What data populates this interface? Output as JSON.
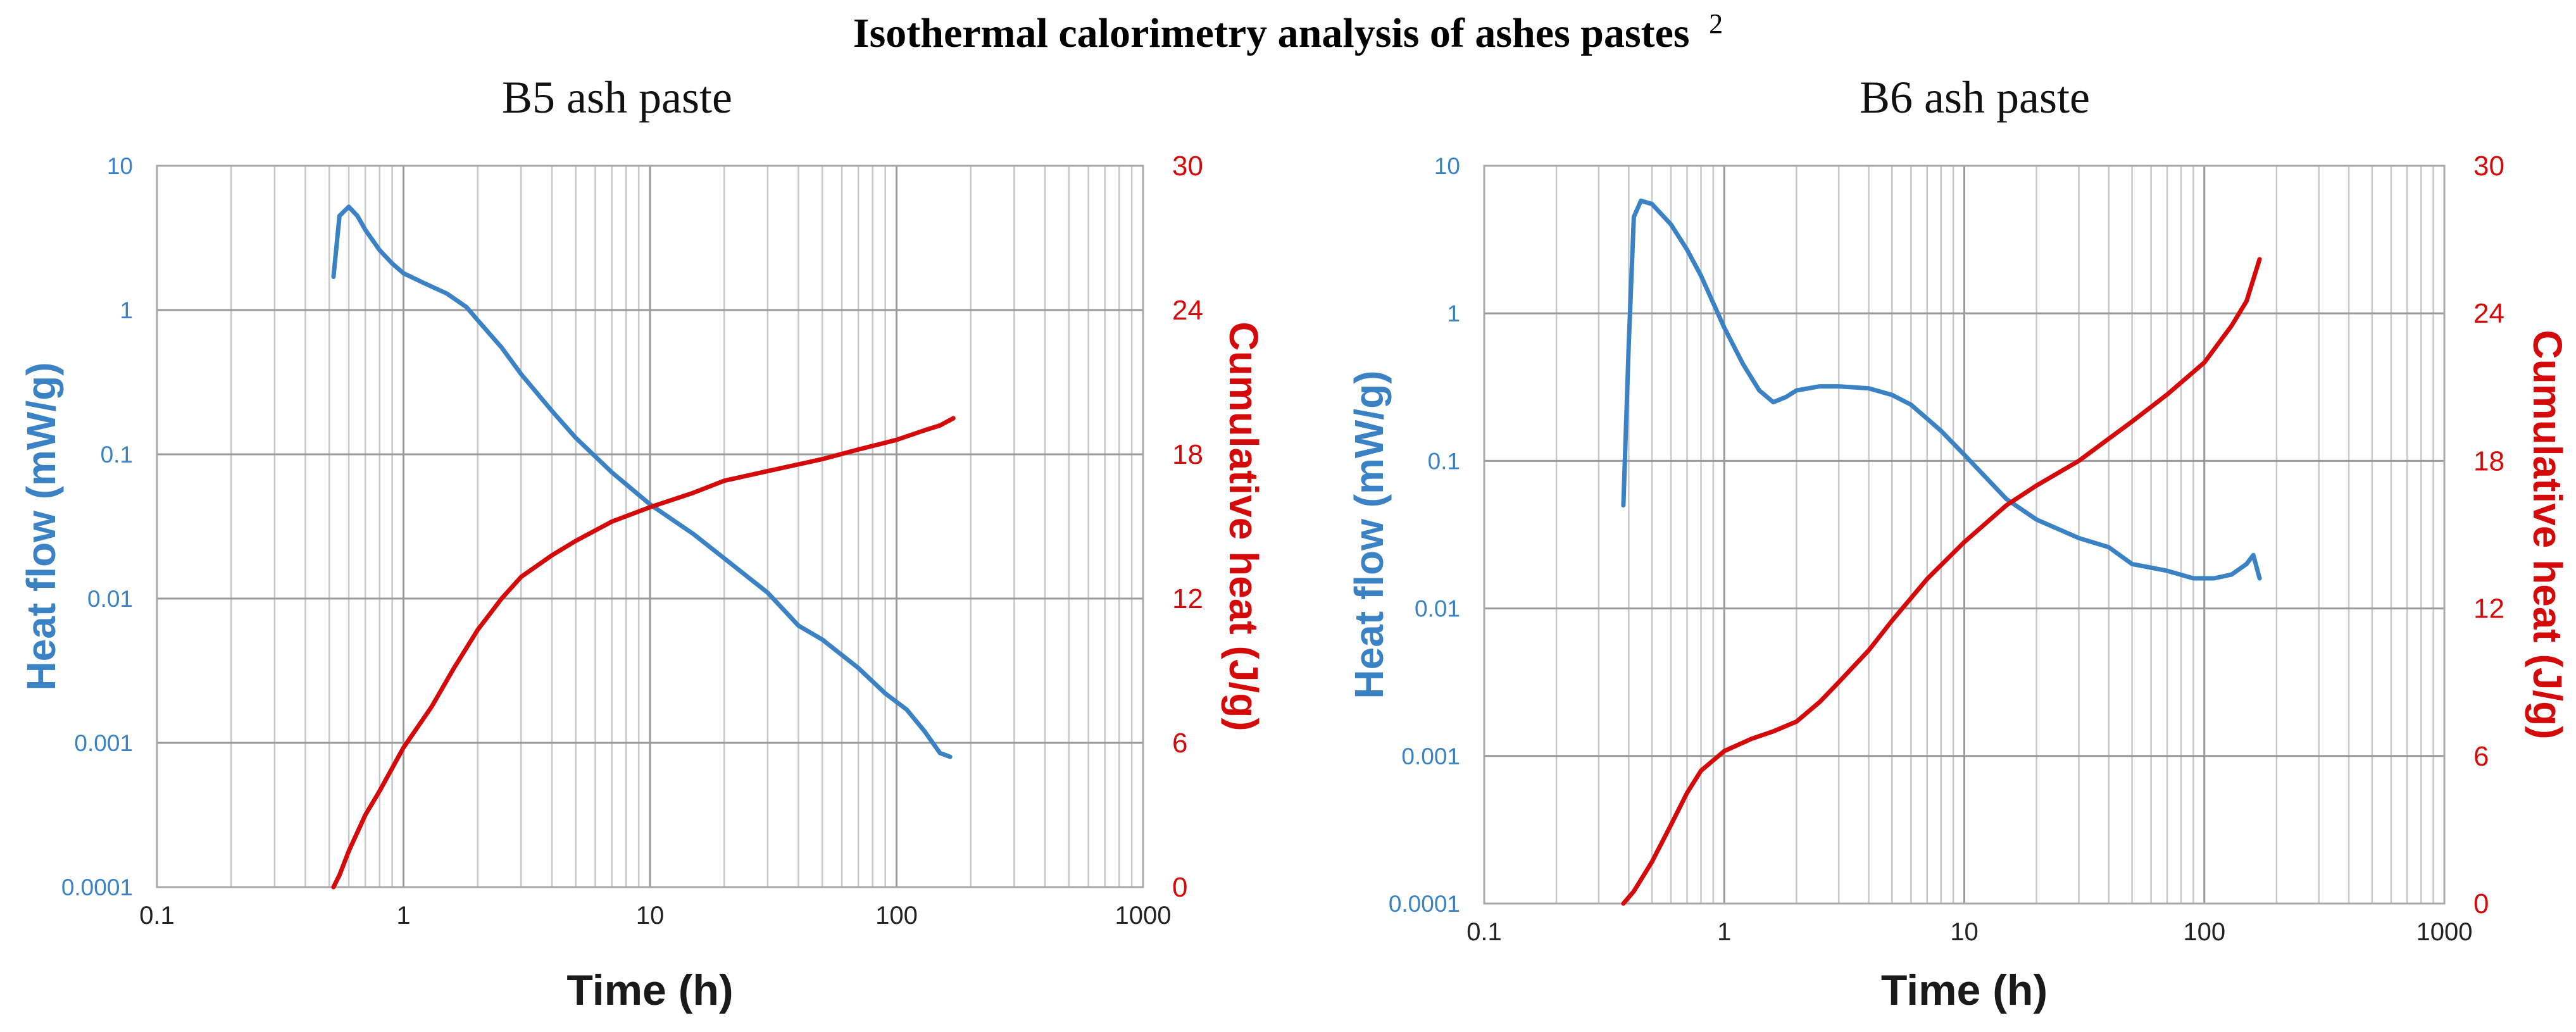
{
  "figure_title": "Isothermal calorimetry analysis of ashes pastes",
  "figure_title_superscript": "2",
  "colors": {
    "heat_flow": "#3a82c4",
    "cumulative": "#d40a0a",
    "grid": "#bdbdbd"
  },
  "chart_data": [
    {
      "type": "line",
      "title": "B5 ash paste",
      "xlabel": "Time (h)",
      "ylabel_left": "Heat flow (mW/g)",
      "ylabel_right": "Cumulative heat (J/g)",
      "x_scale": "log",
      "xlim": [
        0.1,
        1000
      ],
      "ylim_left": [
        0.0001,
        10
      ],
      "ylim_right": [
        0,
        30
      ],
      "x_tick_labels": [
        "0.1",
        "1",
        "10",
        "100",
        "1000"
      ],
      "y_left_tick_labels": [
        "0.0001",
        "0.001",
        "0.01",
        "0.1",
        "1",
        "10"
      ],
      "y_right_tick_labels": [
        "0",
        "6",
        "12",
        "18",
        "24",
        "30"
      ],
      "series": [
        {
          "name": "Heat flow",
          "axis": "left",
          "x": [
            0.52,
            0.55,
            0.6,
            0.65,
            0.7,
            0.8,
            0.9,
            1.0,
            1.2,
            1.5,
            1.8,
            2.0,
            2.5,
            3,
            4,
            5,
            7,
            10,
            15,
            20,
            30,
            40,
            50,
            70,
            90,
            110,
            130,
            150,
            165
          ],
          "values": [
            1.7,
            4.5,
            5.2,
            4.5,
            3.6,
            2.6,
            2.1,
            1.8,
            1.55,
            1.3,
            1.05,
            0.85,
            0.55,
            0.36,
            0.2,
            0.13,
            0.075,
            0.045,
            0.028,
            0.019,
            0.011,
            0.0065,
            0.0052,
            0.0033,
            0.0022,
            0.0017,
            0.0012,
            0.00085,
            0.0008
          ]
        },
        {
          "name": "Cumulative heat",
          "axis": "right",
          "x": [
            0.52,
            0.55,
            0.6,
            0.7,
            0.8,
            1.0,
            1.3,
            1.6,
            2.0,
            2.5,
            3,
            4,
            5,
            7,
            10,
            15,
            20,
            30,
            50,
            70,
            100,
            130,
            150,
            170
          ],
          "values": [
            0,
            0.5,
            1.5,
            3.0,
            4.0,
            5.8,
            7.5,
            9.1,
            10.7,
            12.0,
            12.9,
            13.8,
            14.4,
            15.2,
            15.8,
            16.4,
            16.9,
            17.3,
            17.8,
            18.2,
            18.6,
            19.0,
            19.2,
            19.5
          ]
        }
      ]
    },
    {
      "type": "line",
      "title": "B6 ash paste",
      "xlabel": "Time (h)",
      "ylabel_left": "Heat flow (mW/g)",
      "ylabel_right": "Cumulative heat (J/g)",
      "x_scale": "log",
      "xlim": [
        0.1,
        1000
      ],
      "ylim_left": [
        0.0001,
        10
      ],
      "ylim_right": [
        0,
        30
      ],
      "x_tick_labels": [
        "0.1",
        "1",
        "10",
        "100",
        "1000"
      ],
      "y_left_tick_labels": [
        "0.0001",
        "0.001",
        "0.01",
        "0.1",
        "1",
        "10"
      ],
      "y_right_tick_labels": [
        "0",
        "6",
        "12",
        "18",
        "24",
        "30"
      ],
      "series": [
        {
          "name": "Heat flow",
          "axis": "left",
          "x": [
            0.38,
            0.4,
            0.42,
            0.45,
            0.5,
            0.6,
            0.7,
            0.8,
            1.0,
            1.2,
            1.4,
            1.6,
            1.8,
            2.0,
            2.5,
            3,
            4,
            5,
            6,
            8,
            10,
            15,
            20,
            30,
            40,
            50,
            70,
            90,
            110,
            130,
            150,
            160,
            170
          ],
          "values": [
            0.05,
            0.6,
            4.5,
            5.8,
            5.5,
            4.0,
            2.7,
            1.8,
            0.8,
            0.45,
            0.3,
            0.25,
            0.27,
            0.3,
            0.32,
            0.32,
            0.31,
            0.28,
            0.24,
            0.16,
            0.11,
            0.055,
            0.04,
            0.03,
            0.026,
            0.02,
            0.018,
            0.016,
            0.016,
            0.017,
            0.02,
            0.023,
            0.016
          ]
        },
        {
          "name": "Cumulative heat",
          "axis": "right",
          "x": [
            0.38,
            0.42,
            0.5,
            0.6,
            0.7,
            0.8,
            1.0,
            1.3,
            1.6,
            2.0,
            2.5,
            3,
            4,
            5,
            7,
            10,
            15,
            20,
            30,
            50,
            70,
            100,
            130,
            150,
            170
          ],
          "values": [
            0,
            0.5,
            1.7,
            3.2,
            4.5,
            5.4,
            6.2,
            6.7,
            7.0,
            7.4,
            8.2,
            9.0,
            10.3,
            11.5,
            13.2,
            14.7,
            16.2,
            17.0,
            18.0,
            19.6,
            20.7,
            22.0,
            23.5,
            24.5,
            26.2
          ]
        }
      ]
    }
  ]
}
